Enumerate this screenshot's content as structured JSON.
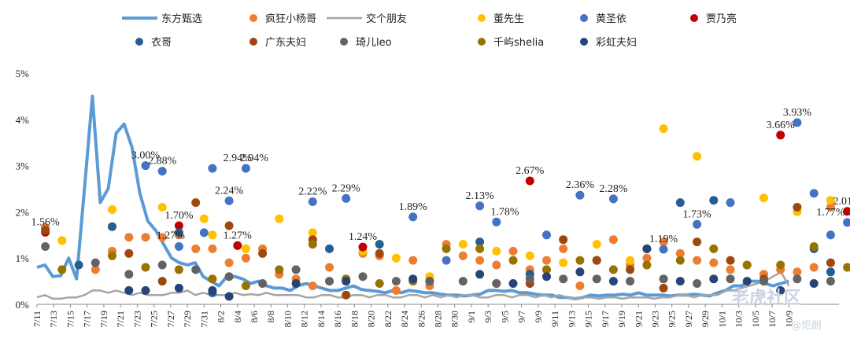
{
  "chart_data": {
    "type": "line",
    "ylim": [
      0,
      5
    ],
    "y_ticks": [
      "0%",
      "1%",
      "2%",
      "3%",
      "4%",
      "5%"
    ],
    "x_ticks": [
      "7/11",
      "7/13",
      "7/15",
      "7/17",
      "7/19",
      "7/21",
      "7/23",
      "7/25",
      "7/27",
      "7/29",
      "7/31",
      "8/2",
      "8/4",
      "8/6",
      "8/8",
      "8/10",
      "8/12",
      "8/14",
      "8/16",
      "8/18",
      "8/20",
      "8/22",
      "8/24",
      "8/26",
      "8/28",
      "8/30",
      "9/1",
      "9/3",
      "9/5",
      "9/7",
      "9/9",
      "9/11",
      "9/13",
      "9/15",
      "9/17",
      "9/19",
      "9/21",
      "9/23",
      "9/25",
      "9/27",
      "9/29",
      "10/1",
      "10/3",
      "10/5",
      "10/7",
      "10/9"
    ],
    "grid": false,
    "legend_position": "top",
    "series": [
      {
        "name": "东方甄选",
        "kind": "line",
        "color": "#5b9bd5",
        "values": [
          0.8,
          0.85,
          0.6,
          0.62,
          1.0,
          0.55,
          2.5,
          4.5,
          2.2,
          2.5,
          3.7,
          3.9,
          3.4,
          2.4,
          1.8,
          1.6,
          1.3,
          1.0,
          0.9,
          0.85,
          0.9,
          0.6,
          0.5,
          0.4,
          0.6,
          0.6,
          0.55,
          0.45,
          0.5,
          0.4,
          0.35,
          0.35,
          0.3,
          0.4,
          0.45,
          0.4,
          0.35,
          0.3,
          0.3,
          0.35,
          0.4,
          0.32,
          0.3,
          0.28,
          0.25,
          0.3,
          0.25,
          0.3,
          0.28,
          0.25,
          0.25,
          0.22,
          0.2,
          0.2,
          0.18,
          0.2,
          0.22,
          0.3,
          0.3,
          0.28,
          0.3,
          0.25,
          0.25,
          0.22,
          0.2,
          0.2,
          0.15,
          0.15,
          0.12,
          0.15,
          0.2,
          0.18,
          0.2,
          0.2,
          0.22,
          0.2,
          0.25,
          0.2,
          0.2,
          0.2,
          0.18,
          0.2,
          0.2,
          0.22,
          0.2,
          0.18,
          0.25,
          0.3,
          0.4,
          0.4,
          0.5,
          0.5,
          0.45,
          0.4,
          0.45,
          0.5
        ]
      },
      {
        "name": "交个朋友",
        "kind": "line",
        "color": "#a5a5a5",
        "values": [
          0.15,
          0.2,
          0.12,
          0.12,
          0.15,
          0.15,
          0.2,
          0.3,
          0.3,
          0.25,
          0.3,
          0.25,
          0.2,
          0.25,
          0.2,
          0.2,
          0.2,
          0.25,
          0.25,
          0.3,
          0.2,
          0.25,
          0.2,
          0.2,
          0.2,
          0.25,
          0.2,
          0.22,
          0.2,
          0.25,
          0.2,
          0.2,
          0.2,
          0.2,
          0.15,
          0.15,
          0.2,
          0.2,
          0.15,
          0.15,
          0.2,
          0.2,
          0.15,
          0.2,
          0.2,
          0.15,
          0.15,
          0.2,
          0.2,
          0.15,
          0.2,
          0.15,
          0.2,
          0.15,
          0.2,
          0.2,
          0.15,
          0.15,
          0.2,
          0.2,
          0.15,
          0.2,
          0.2,
          0.15,
          0.2,
          0.15,
          0.2,
          0.15,
          0.12,
          0.15,
          0.15,
          0.12,
          0.15,
          0.15,
          0.12,
          0.15,
          0.15,
          0.15,
          0.12,
          0.15,
          0.15,
          0.2,
          0.2,
          0.15,
          0.2,
          0.2,
          0.2,
          0.3,
          0.3,
          0.35,
          0.4,
          0.45,
          0.5,
          0.6,
          0.7,
          0.4
        ]
      },
      {
        "name": "疯狂小杨哥",
        "kind": "scatter",
        "color": "#ed7d31",
        "x": [
          1,
          7,
          9,
          11,
          13,
          15,
          17,
          19,
          21,
          23,
          25,
          27,
          29,
          31,
          33,
          35,
          37,
          39,
          41,
          43,
          45,
          47,
          49,
          51,
          53,
          55,
          57,
          59,
          61,
          63,
          65,
          67,
          69,
          71,
          73,
          75,
          77,
          79,
          81,
          83,
          85,
          87,
          89,
          91,
          93,
          95
        ],
        "values": [
          1.66,
          0.75,
          1.15,
          1.45,
          1.45,
          1.45,
          1.5,
          1.2,
          1.2,
          0.9,
          1.0,
          1.2,
          0.65,
          0.55,
          0.4,
          0.8,
          0.5,
          1.1,
          1.05,
          0.3,
          0.95,
          0.4,
          1.3,
          1.05,
          0.95,
          0.85,
          1.15,
          0.75,
          0.95,
          1.2,
          0.4,
          0.95,
          1.4,
          0.85,
          1.0,
          1.35,
          1.1,
          0.95,
          0.9,
          0.75,
          0.85,
          0.65,
          0.75,
          0.7,
          0.8,
          2.1
        ]
      },
      {
        "name": "董先生",
        "kind": "scatter",
        "color": "#ffc000",
        "x": [
          3,
          9,
          15,
          20,
          21,
          25,
          29,
          33,
          39,
          43,
          47,
          51,
          55,
          59,
          63,
          67,
          71,
          75,
          79,
          83,
          87,
          91,
          95
        ],
        "values": [
          1.38,
          2.05,
          2.1,
          1.85,
          1.5,
          1.2,
          1.85,
          1.55,
          1.15,
          1.0,
          0.6,
          1.3,
          1.15,
          1.05,
          0.9,
          1.3,
          0.95,
          3.8,
          3.2,
          2.2,
          2.3,
          2.0,
          2.25
        ]
      },
      {
        "name": "黄圣依",
        "kind": "scatter",
        "color": "#4472c4",
        "x": [
          13,
          15,
          17,
          20,
          21,
          23,
          25,
          33,
          37,
          45,
          49,
          53,
          55,
          61,
          65,
          69,
          75,
          79,
          83,
          91,
          93,
          95,
          97
        ],
        "values": [
          3.0,
          2.88,
          1.25,
          1.55,
          2.94,
          2.24,
          2.94,
          2.22,
          2.29,
          1.89,
          0.95,
          2.13,
          1.78,
          1.5,
          2.36,
          2.28,
          1.19,
          1.73,
          2.2,
          3.93,
          2.4,
          1.5,
          1.77
        ]
      },
      {
        "name": "贾乃亮",
        "kind": "scatter",
        "color": "#c00000",
        "x": [
          1,
          17,
          24,
          39,
          59,
          89,
          97
        ],
        "values": [
          1.56,
          1.7,
          1.27,
          1.24,
          2.67,
          3.66,
          2.01
        ]
      },
      {
        "name": "衣哥",
        "kind": "scatter",
        "color": "#255e91",
        "x": [
          5,
          9,
          17,
          21,
          35,
          41,
          53,
          59,
          67,
          73,
          77,
          81,
          93,
          95
        ],
        "values": [
          0.85,
          1.68,
          1.55,
          0.25,
          1.2,
          1.3,
          1.35,
          0.65,
          0.95,
          1.2,
          2.2,
          2.25,
          1.2,
          0.7
        ]
      },
      {
        "name": "广东夫妇",
        "kind": "scatter",
        "color": "#9e480e",
        "x": [
          1,
          11,
          15,
          19,
          23,
          27,
          33,
          37,
          41,
          47,
          55,
          59,
          63,
          67,
          71,
          75,
          79,
          83,
          87,
          91,
          95
        ],
        "values": [
          1.6,
          1.1,
          0.5,
          2.2,
          1.7,
          1.1,
          1.4,
          0.2,
          1.1,
          0.5,
          0.45,
          0.45,
          1.4,
          0.95,
          0.75,
          0.35,
          1.35,
          0.95,
          0.55,
          2.1,
          0.9
        ]
      },
      {
        "name": "琦儿leo",
        "kind": "scatter",
        "color": "#636363",
        "x": [
          1,
          7,
          11,
          15,
          19,
          23,
          27,
          31,
          35,
          39,
          43,
          47,
          51,
          55,
          59,
          63,
          67,
          71,
          75,
          79,
          83,
          87,
          91,
          95
        ],
        "values": [
          1.25,
          0.9,
          0.65,
          0.85,
          0.75,
          0.6,
          0.45,
          0.75,
          0.5,
          0.6,
          0.5,
          0.5,
          0.5,
          0.45,
          0.55,
          0.55,
          0.55,
          0.5,
          0.55,
          0.45,
          0.55,
          0.5,
          0.55,
          0.5
        ]
      },
      {
        "name": "千屿shelia",
        "kind": "scatter",
        "color": "#997300",
        "x": [
          3,
          9,
          13,
          17,
          21,
          25,
          29,
          33,
          37,
          41,
          45,
          49,
          53,
          57,
          61,
          65,
          69,
          73,
          77,
          81,
          85,
          89,
          93,
          97
        ],
        "values": [
          0.75,
          1.05,
          0.8,
          0.75,
          0.55,
          0.4,
          0.75,
          1.3,
          0.55,
          0.45,
          0.5,
          1.2,
          1.2,
          0.95,
          0.75,
          0.95,
          0.75,
          0.85,
          0.95,
          1.2,
          0.85,
          0.85,
          1.25,
          0.8
        ]
      },
      {
        "name": "彩虹夫妇",
        "kind": "scatter",
        "color": "#264478",
        "x": [
          11,
          13,
          17,
          21,
          23,
          31,
          37,
          45,
          53,
          57,
          61,
          65,
          69,
          73,
          77,
          81,
          85,
          89,
          93
        ],
        "values": [
          0.3,
          0.3,
          0.35,
          0.3,
          0.17,
          0.45,
          0.5,
          0.55,
          0.65,
          0.45,
          0.6,
          0.7,
          0.5,
          1.2,
          0.5,
          0.55,
          0.5,
          0.3,
          0.45
        ]
      }
    ],
    "data_labels": [
      {
        "text": "1.56%",
        "x": 1,
        "value": 1.56
      },
      {
        "text": "3.00%",
        "x": 13,
        "value": 3.0
      },
      {
        "text": "2.88%",
        "x": 15,
        "value": 2.88
      },
      {
        "text": "1.27%",
        "x": 16,
        "value": 1.27
      },
      {
        "text": "1.70%",
        "x": 17,
        "value": 1.7
      },
      {
        "text": "2.24%",
        "x": 23,
        "value": 2.24
      },
      {
        "text": "2.94%",
        "x": 24,
        "value": 2.94
      },
      {
        "text": "2.94%",
        "x": 26,
        "value": 2.94
      },
      {
        "text": "1.27%",
        "x": 24,
        "value": 1.27
      },
      {
        "text": "2.22%",
        "x": 33,
        "value": 2.22
      },
      {
        "text": "2.29%",
        "x": 37,
        "value": 2.29
      },
      {
        "text": "1.24%",
        "x": 39,
        "value": 1.24
      },
      {
        "text": "1.89%",
        "x": 45,
        "value": 1.89
      },
      {
        "text": "2.13%",
        "x": 53,
        "value": 2.13
      },
      {
        "text": "1.78%",
        "x": 56,
        "value": 1.78
      },
      {
        "text": "2.67%",
        "x": 59,
        "value": 2.67
      },
      {
        "text": "2.36%",
        "x": 65,
        "value": 2.36
      },
      {
        "text": "2.28%",
        "x": 69,
        "value": 2.28
      },
      {
        "text": "1.19%",
        "x": 75,
        "value": 1.19
      },
      {
        "text": "1.73%",
        "x": 79,
        "value": 1.73
      },
      {
        "text": "3.93%",
        "x": 91,
        "value": 3.93
      },
      {
        "text": "3.66%",
        "x": 89,
        "value": 3.66
      },
      {
        "text": "1.77%",
        "x": 95,
        "value": 1.77
      },
      {
        "text": "2.01%",
        "x": 97,
        "value": 2.01
      }
    ]
  },
  "watermark": {
    "text": "老虎社区",
    "handle": "@炬朗"
  }
}
